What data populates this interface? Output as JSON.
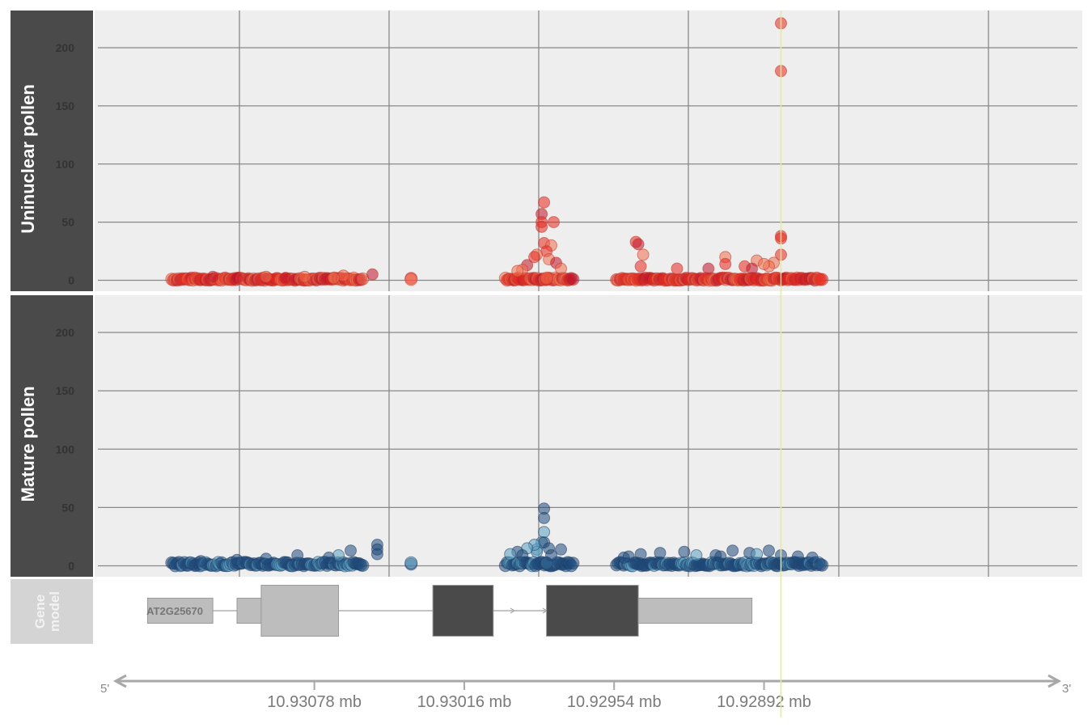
{
  "colors": {
    "uninuclear_fill": "#e8281f",
    "uninuclear_fill_dark": "#c0142a",
    "uninuclear_fill_light": "#f0704f",
    "mature_fill": "#1f4b7c",
    "mature_fill_light": "#5a9fc0",
    "panel_bg": "#eeeeee",
    "grid": "#888888",
    "strip_bg": "#4a4a4a",
    "gene_strip_bg": "#d4d4d4",
    "exon_utr": "#bdbdbd",
    "exon_cds": "#4a4a4a",
    "highlight_line": "#e6f07a",
    "axis_arrow": "#a8a8a8"
  },
  "chart_data": {
    "type": "scatter",
    "tracks": [
      {
        "title": "Uninuclear pollen",
        "series_color": "red",
        "yticks": [
          0,
          50,
          100,
          150,
          200
        ],
        "ylim": [
          -12,
          222
        ],
        "baseline_segments": [
          [
            10.93137,
            10.93058
          ],
          [
            10.93038,
            10.93038
          ],
          [
            10.92999,
            10.92971
          ],
          [
            10.92982,
            10.92982
          ],
          [
            10.92953,
            10.92868
          ]
        ],
        "points": [
          [
            10.92885,
            221
          ],
          [
            10.92885,
            180
          ],
          [
            10.92885,
            38
          ],
          [
            10.92885,
            36
          ],
          [
            10.92885,
            22
          ],
          [
            10.92888,
            15
          ],
          [
            10.9289,
            12
          ],
          [
            10.92983,
            67
          ],
          [
            10.92984,
            57
          ],
          [
            10.92984,
            50
          ],
          [
            10.92979,
            50
          ],
          [
            10.92984,
            46
          ],
          [
            10.92983,
            32
          ],
          [
            10.9298,
            30
          ],
          [
            10.92982,
            25
          ],
          [
            10.92986,
            22
          ],
          [
            10.92987,
            20
          ],
          [
            10.92981,
            18
          ],
          [
            10.92978,
            15
          ],
          [
            10.9299,
            13
          ],
          [
            10.92992,
            9
          ],
          [
            10.92994,
            8
          ],
          [
            10.92976,
            10
          ],
          [
            10.92945,
            33
          ],
          [
            10.92944,
            31
          ],
          [
            10.92942,
            22
          ],
          [
            10.92943,
            12
          ],
          [
            10.92908,
            20
          ],
          [
            10.92908,
            14
          ],
          [
            10.929,
            12
          ],
          [
            10.92895,
            17
          ],
          [
            10.92892,
            14
          ],
          [
            10.92928,
            10
          ],
          [
            10.92915,
            10
          ],
          [
            10.92897,
            10
          ],
          [
            10.93054,
            5
          ],
          [
            10.93066,
            4
          ],
          [
            10.93082,
            3
          ],
          [
            10.93098,
            3
          ],
          [
            10.9312,
            3
          ],
          [
            10.9309,
            2
          ],
          [
            10.9311,
            2
          ],
          [
            10.9307,
            2
          ]
        ]
      },
      {
        "title": "Mature pollen",
        "series_color": "blue",
        "yticks": [
          0,
          50,
          100,
          150,
          200
        ],
        "ylim": [
          -12,
          222
        ],
        "baseline_segments": [
          [
            10.93137,
            10.93058
          ],
          [
            10.93038,
            10.93038
          ],
          [
            10.92999,
            10.92971
          ],
          [
            10.92982,
            10.92982
          ],
          [
            10.92953,
            10.92868
          ]
        ],
        "points": [
          [
            10.92983,
            49
          ],
          [
            10.92983,
            41
          ],
          [
            10.92983,
            29
          ],
          [
            10.92984,
            20
          ],
          [
            10.92983,
            20
          ],
          [
            10.92981,
            15
          ],
          [
            10.92986,
            14
          ],
          [
            10.92976,
            14
          ],
          [
            10.92986,
            12
          ],
          [
            10.92987,
            18
          ],
          [
            10.9299,
            15
          ],
          [
            10.92994,
            12
          ],
          [
            10.92997,
            10
          ],
          [
            10.92992,
            9
          ],
          [
            10.9298,
            9
          ],
          [
            10.93052,
            18
          ],
          [
            10.93052,
            14
          ],
          [
            10.93052,
            10
          ],
          [
            10.93063,
            13
          ],
          [
            10.93068,
            9
          ],
          [
            10.93072,
            7
          ],
          [
            10.93085,
            9
          ],
          [
            10.93098,
            6
          ],
          [
            10.9311,
            5
          ],
          [
            10.93125,
            4
          ],
          [
            10.9295,
            7
          ],
          [
            10.92948,
            8
          ],
          [
            10.92943,
            10
          ],
          [
            10.92935,
            11
          ],
          [
            10.92925,
            12
          ],
          [
            10.92912,
            9
          ],
          [
            10.92905,
            13
          ],
          [
            10.92898,
            11
          ],
          [
            10.9289,
            13
          ],
          [
            10.92895,
            10
          ],
          [
            10.92885,
            9
          ],
          [
            10.92878,
            8
          ],
          [
            10.92872,
            7
          ],
          [
            10.9291,
            8
          ],
          [
            10.9292,
            9
          ]
        ]
      }
    ],
    "x_axis": {
      "reversed": true,
      "ticks": [
        10.93078,
        10.93016,
        10.92954,
        10.92892
      ],
      "tick_labels": [
        "10.93078 mb",
        "10.93016 mb",
        "10.92954 mb",
        "10.92892 mb"
      ],
      "left_end_label": "5'",
      "right_end_label": "3'",
      "xlim": [
        10.93109,
        10.92849
      ]
    },
    "highlight_x": 10.92885,
    "gene_model": {
      "track_title_line1": "Gene",
      "track_title_line2": "model",
      "gene_name": "AT2G25670",
      "features": [
        {
          "type": "utr",
          "start": 10.93147,
          "end": 10.9312
        },
        {
          "type": "utr",
          "start": 10.9311,
          "end": 10.931
        },
        {
          "type": "utr",
          "start": 10.931,
          "end": 10.93068
        },
        {
          "type": "cds",
          "start": 10.93029,
          "end": 10.93004
        },
        {
          "type": "cds",
          "start": 10.92982,
          "end": 10.92944
        },
        {
          "type": "utr",
          "start": 10.92944,
          "end": 10.92897
        }
      ]
    }
  }
}
